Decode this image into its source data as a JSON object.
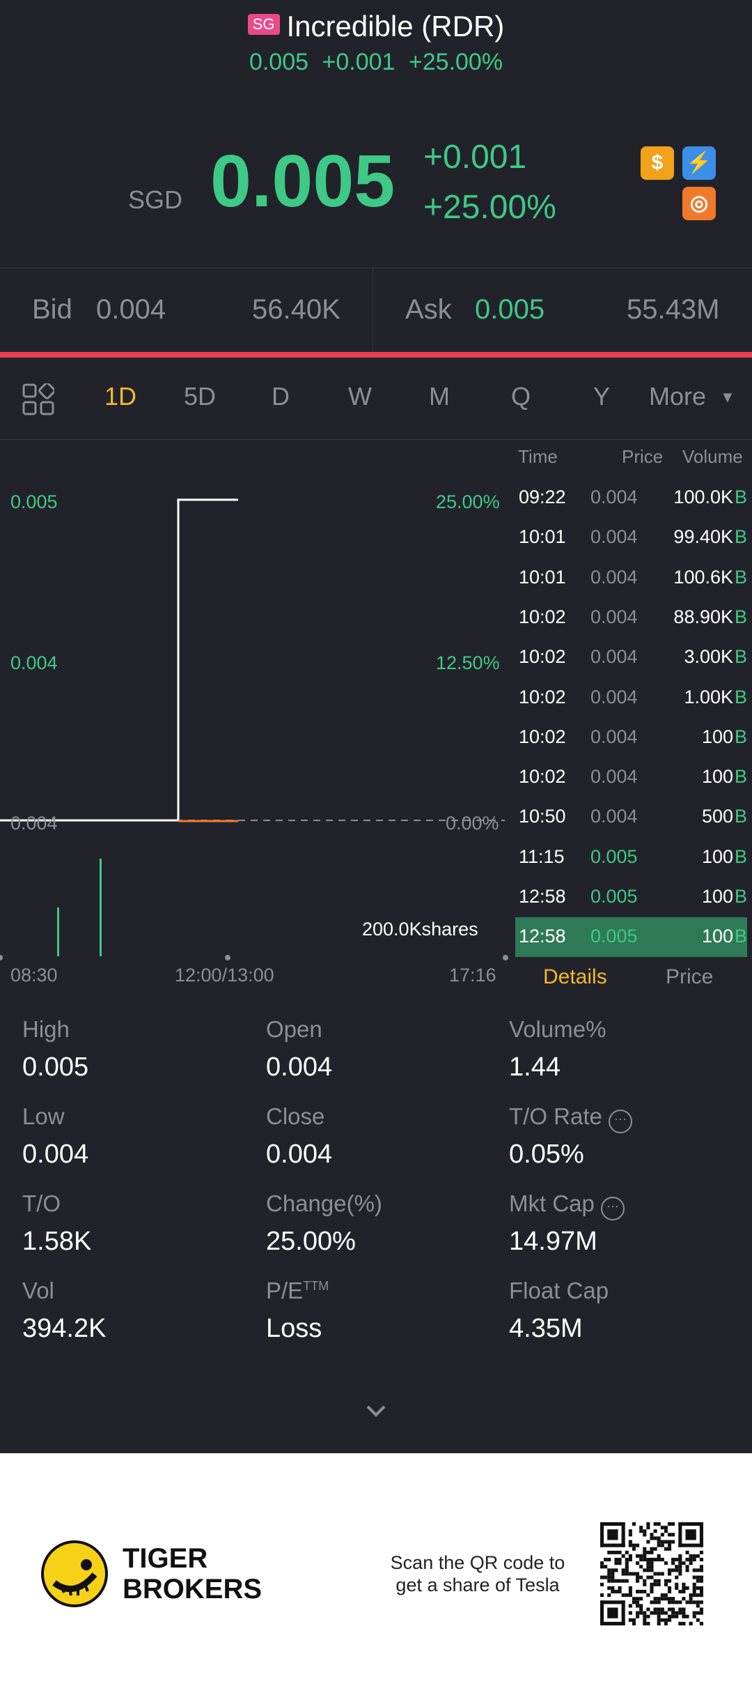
{
  "header": {
    "market_badge": "SG",
    "title": "Incredible (RDR)",
    "sub_price": "0.005",
    "sub_change": "+0.001",
    "sub_pct": "+25.00%"
  },
  "quote": {
    "currency": "SGD",
    "price": "0.005",
    "change": "+0.001",
    "change_pct": "+25.00%",
    "badges": [
      "dollar-icon",
      "flash-icon",
      "logo-icon"
    ]
  },
  "bid_ask": {
    "bid_label": "Bid",
    "bid_price": "0.004",
    "bid_size": "56.40K",
    "ask_label": "Ask",
    "ask_price": "0.005",
    "ask_size": "55.43M"
  },
  "periods": [
    "1D",
    "5D",
    "D",
    "W",
    "M",
    "Q",
    "Y"
  ],
  "more_label": "More",
  "active_period": "1D",
  "chart": {
    "price_high": "0.005",
    "price_mid": "0.004",
    "price_low": "0.004",
    "pct_high": "25.00%",
    "pct_mid": "12.50%",
    "pct_low": "0.00%",
    "volume_label": "200.0Kshares",
    "time_start": "08:30",
    "time_mid": "12:00/13:00",
    "time_end": "17:16"
  },
  "chart_data": {
    "type": "line",
    "series": [
      {
        "values": [
          0.004,
          0.004,
          0.005,
          0.005
        ]
      }
    ],
    "ylim": [
      0.004,
      0.005
    ],
    "x": [
      "08:30",
      "10:50",
      "11:15",
      "12:58"
    ],
    "volume_bars": [
      {
        "x": "09:22",
        "value": 100000
      },
      {
        "x": "10:02",
        "value": 200000
      }
    ]
  },
  "trades": {
    "headers": [
      "Time",
      "Price",
      "Volume"
    ],
    "rows": [
      {
        "time": "09:22",
        "price": "0.004",
        "volume": "100.0K",
        "side": "B"
      },
      {
        "time": "10:01",
        "price": "0.004",
        "volume": "99.40K",
        "side": "B"
      },
      {
        "time": "10:01",
        "price": "0.004",
        "volume": "100.6K",
        "side": "B"
      },
      {
        "time": "10:02",
        "price": "0.004",
        "volume": "88.90K",
        "side": "B"
      },
      {
        "time": "10:02",
        "price": "0.004",
        "volume": "3.00K",
        "side": "B"
      },
      {
        "time": "10:02",
        "price": "0.004",
        "volume": "1.00K",
        "side": "B"
      },
      {
        "time": "10:02",
        "price": "0.004",
        "volume": "100",
        "side": "B"
      },
      {
        "time": "10:02",
        "price": "0.004",
        "volume": "100",
        "side": "B"
      },
      {
        "time": "10:50",
        "price": "0.004",
        "volume": "500",
        "side": "B"
      },
      {
        "time": "11:15",
        "price": "0.005",
        "volume": "100",
        "side": "B"
      },
      {
        "time": "12:58",
        "price": "0.005",
        "volume": "100",
        "side": "B"
      },
      {
        "time": "12:58",
        "price": "0.005",
        "volume": "100",
        "side": "B"
      }
    ],
    "tab_details": "Details",
    "tab_price": "Price"
  },
  "stats": {
    "high_label": "High",
    "high": "0.005",
    "open_label": "Open",
    "open": "0.004",
    "volpct_label": "Volume%",
    "volpct": "1.44",
    "low_label": "Low",
    "low": "0.004",
    "close_label": "Close",
    "close": "0.004",
    "to_rate_label": "T/O Rate",
    "to_rate": "0.05%",
    "to_label": "T/O",
    "to": "1.58K",
    "change_label": "Change(%)",
    "change": "25.00%",
    "mktcap_label": "Mkt Cap",
    "mktcap": "14.97M",
    "vol_label": "Vol",
    "vol": "394.2K",
    "pe_label": "P/E",
    "pe_sup": "TTM",
    "pe": "Loss",
    "floatcap_label": "Float Cap",
    "floatcap": "4.35M"
  },
  "footer": {
    "brand_line1": "TIGER",
    "brand_line2": "BROKERS",
    "scan_line1": "Scan the QR code to",
    "scan_line2": "get a share of Tesla"
  },
  "colors": {
    "up": "#3ec986",
    "down": "#ee3e52",
    "accent": "#f3b72d",
    "background": "#22232a"
  }
}
